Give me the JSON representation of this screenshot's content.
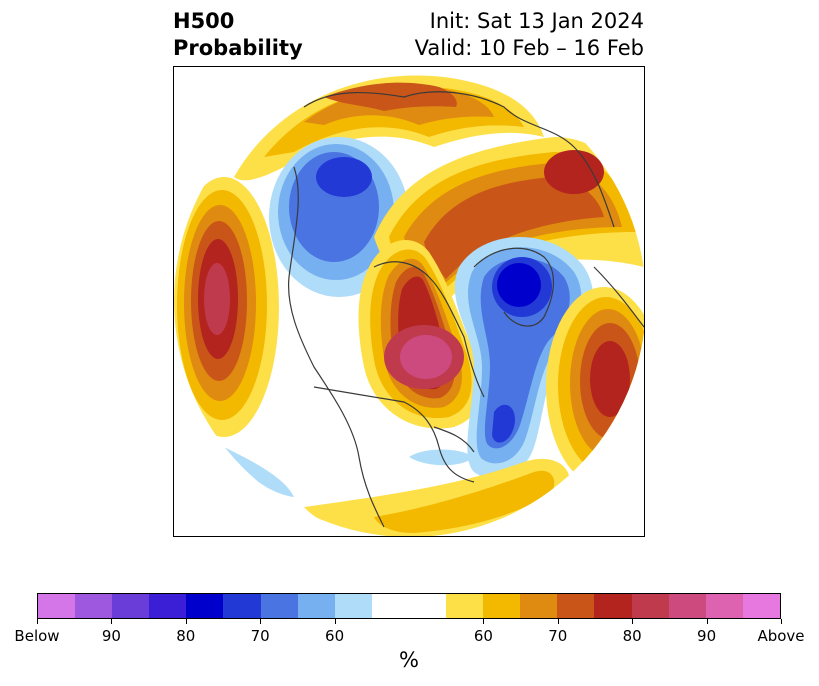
{
  "header": {
    "left_line1": "H500",
    "left_line2": "Probability",
    "right_line1": "Init: Sat 13 Jan 2024",
    "right_line2": "Valid: 10 Feb – 16 Feb"
  },
  "colorbar": {
    "colors": [
      "#d576e8",
      "#9e58e0",
      "#6b3dd8",
      "#3a1fd6",
      "#0000cc",
      "#2239d6",
      "#4a74e2",
      "#77b0f0",
      "#afdcf8",
      "#ffffff",
      "#ffffff",
      "#fde047",
      "#f3b800",
      "#df8a10",
      "#c95618",
      "#b3241f",
      "#c03a4e",
      "#cd4a7f",
      "#dd62b0",
      "#e678df"
    ],
    "tick_labels": [
      "Below",
      "90",
      "80",
      "70",
      "60",
      "60",
      "70",
      "80",
      "90",
      "Above"
    ],
    "unit": "%"
  }
}
